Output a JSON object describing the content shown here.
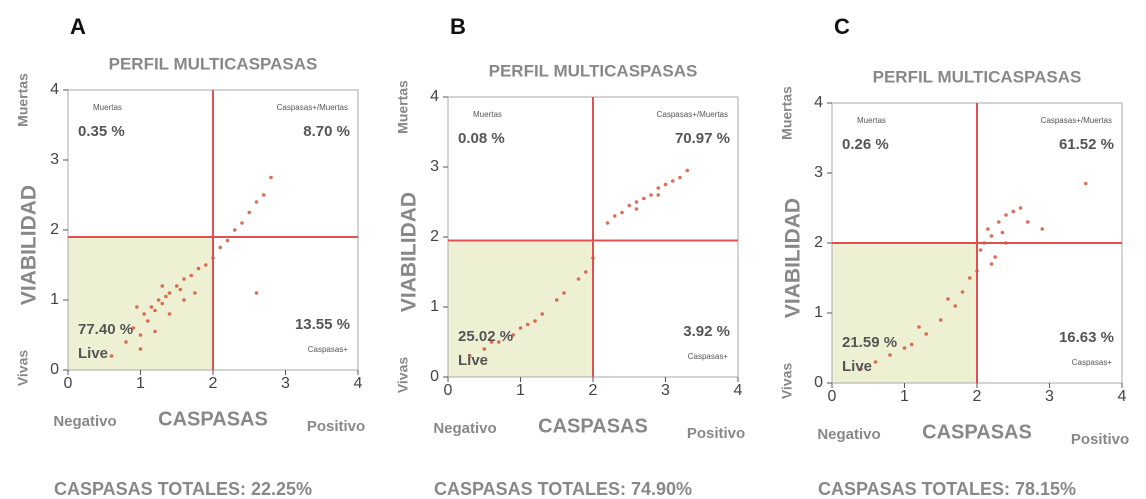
{
  "chart_data": [
    {
      "type": "scatter",
      "panel_label": "A",
      "title": "PERFIL MULTICASPASAS",
      "xlabel": "CASPASAS",
      "ylabel": "VIABILIDAD",
      "x_low_label": "Negativo",
      "x_high_label": "Positivo",
      "y_low_label": "Vivas",
      "y_high_label": "Muertas",
      "xlim": [
        0,
        4
      ],
      "ylim": [
        0,
        4
      ],
      "xticks": [
        0,
        1,
        2,
        3,
        4
      ],
      "yticks": [
        0,
        1,
        2,
        3,
        4
      ],
      "gate_x": 2,
      "gate_y": 1.9,
      "color": "#d4553a",
      "quadrants": {
        "names": [
          "Muertas",
          "Caspasas+/Muertas",
          "Caspasas+",
          "Live"
        ],
        "values": [
          0.35,
          8.7,
          13.55,
          77.4
        ],
        "value_labels": [
          "0.35 %",
          "8.70 %",
          "13.55 %",
          "77.40 %"
        ]
      },
      "footer": "CASPASAS TOTALES: 22.25%",
      "x": [
        0.6,
        0.8,
        0.9,
        1.0,
        1.05,
        1.1,
        1.15,
        1.2,
        1.25,
        1.3,
        1.35,
        1.4,
        1.5,
        1.55,
        1.6,
        1.7,
        1.8,
        1.9,
        2.0,
        2.1,
        2.2,
        2.3,
        2.4,
        2.5,
        2.6,
        2.7,
        2.8,
        1.0,
        1.2,
        1.4,
        0.95,
        1.3,
        1.6,
        1.75,
        2.6
      ],
      "y": [
        0.2,
        0.4,
        0.6,
        0.5,
        0.8,
        0.7,
        0.9,
        0.85,
        1.0,
        0.95,
        1.05,
        1.1,
        1.2,
        1.15,
        1.3,
        1.35,
        1.45,
        1.5,
        1.6,
        1.75,
        1.85,
        2.0,
        2.1,
        2.25,
        2.4,
        2.5,
        2.75,
        0.3,
        0.55,
        0.8,
        0.9,
        1.2,
        1.0,
        1.1,
        1.1
      ]
    },
    {
      "type": "scatter",
      "panel_label": "B",
      "title": "PERFIL MULTICASPASAS",
      "xlabel": "CASPASAS",
      "ylabel": "VIABILIDAD",
      "x_low_label": "Negativo",
      "x_high_label": "Positivo",
      "y_low_label": "Vivas",
      "y_high_label": "Muertas",
      "xlim": [
        0,
        4
      ],
      "ylim": [
        0,
        4
      ],
      "xticks": [
        0,
        1,
        2,
        3,
        4
      ],
      "yticks": [
        0,
        1,
        2,
        3,
        4
      ],
      "gate_x": 2,
      "gate_y": 1.95,
      "color": "#d4553a",
      "quadrants": {
        "names": [
          "Muertas",
          "Caspasas+/Muertas",
          "Caspasas+",
          "Live"
        ],
        "values": [
          0.08,
          70.97,
          3.92,
          25.02
        ],
        "value_labels": [
          "0.08 %",
          "70.97 %",
          "3.92 %",
          "25.02 %"
        ]
      },
      "footer": "CASPASAS TOTALES: 74.90%",
      "x": [
        0.3,
        0.5,
        0.7,
        0.9,
        1.0,
        1.2,
        1.3,
        1.5,
        1.6,
        1.8,
        1.9,
        2.0,
        2.2,
        2.3,
        2.4,
        2.5,
        2.6,
        2.7,
        2.8,
        2.9,
        3.0,
        3.1,
        3.2,
        3.3,
        0.6,
        1.1,
        2.6,
        2.9
      ],
      "y": [
        0.3,
        0.4,
        0.5,
        0.6,
        0.7,
        0.8,
        0.9,
        1.1,
        1.2,
        1.4,
        1.5,
        1.7,
        2.2,
        2.3,
        2.35,
        2.45,
        2.5,
        2.55,
        2.6,
        2.7,
        2.75,
        2.8,
        2.85,
        2.95,
        0.5,
        0.75,
        2.4,
        2.6
      ]
    },
    {
      "type": "scatter",
      "panel_label": "C",
      "title": "PERFIL MULTICASPASAS",
      "xlabel": "CASPASAS",
      "ylabel": "VIABILIDAD",
      "x_low_label": "Negativo",
      "x_high_label": "Positivo",
      "y_low_label": "Vivas",
      "y_high_label": "Muertas",
      "xlim": [
        0,
        4
      ],
      "ylim": [
        0,
        4
      ],
      "xticks": [
        0,
        1,
        2,
        3,
        4
      ],
      "yticks": [
        0,
        1,
        2,
        3,
        4
      ],
      "gate_x": 2,
      "gate_y": 2.0,
      "color": "#d4553a",
      "quadrants": {
        "names": [
          "Muertas",
          "Caspasas+/Muertas",
          "Caspasas+",
          "Live"
        ],
        "values": [
          0.26,
          61.52,
          16.63,
          21.59
        ],
        "value_labels": [
          "0.26 %",
          "61.52 %",
          "16.63 %",
          "21.59 %"
        ]
      },
      "footer": "CASPASAS TOTALES: 78.15%",
      "x": [
        0.4,
        0.6,
        0.8,
        1.0,
        1.1,
        1.3,
        1.5,
        1.7,
        1.8,
        1.9,
        2.0,
        2.05,
        2.1,
        2.15,
        2.2,
        2.25,
        2.3,
        2.35,
        2.4,
        2.5,
        2.6,
        2.7,
        2.2,
        2.4,
        1.6,
        3.5,
        2.9,
        1.2
      ],
      "y": [
        0.2,
        0.3,
        0.4,
        0.5,
        0.55,
        0.7,
        0.9,
        1.1,
        1.3,
        1.5,
        1.6,
        1.9,
        2.0,
        2.2,
        2.1,
        1.8,
        2.3,
        2.15,
        2.4,
        2.45,
        2.5,
        2.3,
        1.7,
        2.0,
        1.2,
        2.85,
        2.2,
        0.8
      ]
    }
  ]
}
